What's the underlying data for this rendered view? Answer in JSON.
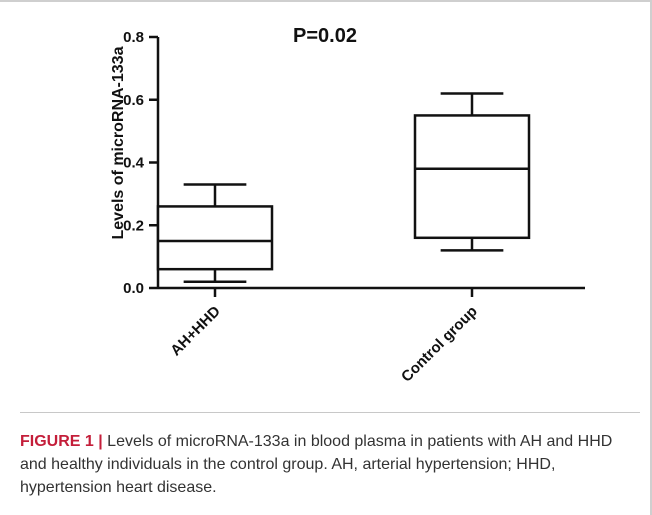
{
  "chart_data": {
    "type": "box",
    "title": "",
    "annotation": "P=0.02",
    "ylabel": "Levels of microRNA-133a",
    "xlabel": "",
    "ylim": [
      0,
      0.8
    ],
    "yticks": [
      "0.0",
      "0.2",
      "0.4",
      "0.6",
      "0.8"
    ],
    "categories": [
      "AH+HHD",
      "Control group"
    ],
    "boxes": [
      {
        "category": "AH+HHD",
        "min": 0.02,
        "q1": 0.06,
        "median": 0.15,
        "q3": 0.26,
        "max": 0.33
      },
      {
        "category": "Control group",
        "min": 0.12,
        "q1": 0.16,
        "median": 0.38,
        "q3": 0.55,
        "max": 0.62
      }
    ]
  },
  "caption": {
    "label": "FIGURE 1 |",
    "text": "Levels of microRNA-133a in blood plasma in patients with AH and HHD and healthy individuals in the control group. AH, arterial hypertension; HHD, hypertension heart disease."
  }
}
